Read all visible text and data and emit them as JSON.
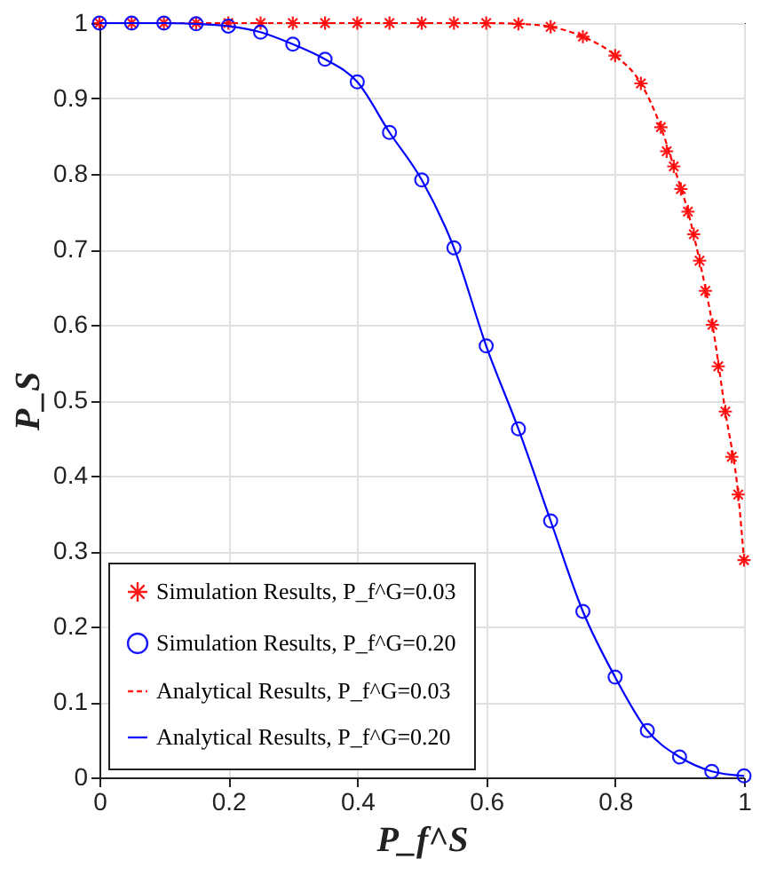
{
  "chart_data": {
    "type": "line",
    "xlabel": "P_f^S",
    "ylabel": "P_S",
    "xlim": [
      0,
      1
    ],
    "xticks": [
      0,
      0.2,
      0.4,
      0.6,
      0.8,
      1
    ],
    "ylim": [
      0,
      1
    ],
    "yticks": [
      0,
      0.1,
      0.2,
      0.3,
      0.4,
      0.5,
      0.6,
      0.7,
      0.8,
      0.9,
      1
    ],
    "grid": true,
    "legend": "bottom left",
    "series": [
      {
        "name": "Simulation Results, P_f^G=0.03",
        "type": "scatter",
        "marker": "cross",
        "color": "#ff0000",
        "x": [
          0,
          0.05,
          0.1,
          0.15,
          0.2,
          0.25,
          0.3,
          0.35,
          0.4,
          0.45,
          0.5,
          0.55,
          0.6,
          0.65,
          0.7,
          0.75,
          0.8,
          0.84,
          0.871,
          0.88,
          0.891,
          0.902,
          0.913,
          0.922,
          0.931,
          0.94,
          0.951,
          0.96,
          0.971,
          0.981,
          0.991,
          1.0
        ],
        "values": [
          1,
          1,
          1,
          1,
          1,
          1,
          1,
          1,
          1,
          1,
          1,
          1,
          1,
          0.999,
          0.995,
          0.982,
          0.957,
          0.92,
          0.862,
          0.83,
          0.81,
          0.78,
          0.75,
          0.72,
          0.685,
          0.645,
          0.6,
          0.545,
          0.485,
          0.425,
          0.375,
          0.288
        ]
      },
      {
        "name": "Simulation Results, P_f^G=0.20",
        "type": "scatter",
        "marker": "circle",
        "color": "#0000ff",
        "x": [
          0,
          0.05,
          0.1,
          0.15,
          0.2,
          0.25,
          0.3,
          0.35,
          0.4,
          0.45,
          0.5,
          0.55,
          0.6,
          0.65,
          0.7,
          0.75,
          0.8,
          0.85,
          0.9,
          0.95,
          1
        ],
        "values": [
          1,
          1,
          1,
          0.999,
          0.996,
          0.988,
          0.972,
          0.952,
          0.922,
          0.855,
          0.792,
          0.702,
          0.572,
          0.462,
          0.34,
          0.22,
          0.133,
          0.062,
          0.027,
          0.008,
          0.002
        ]
      },
      {
        "name": "Analytical Results, P_f^G=0.03",
        "type": "line",
        "line_style": "dashed",
        "color": "#ff0000",
        "x": [
          0,
          0.2,
          0.4,
          0.6,
          0.65,
          0.7,
          0.75,
          0.8,
          0.84,
          0.871,
          0.891,
          0.913,
          0.931,
          0.951,
          0.971,
          0.991,
          1.0
        ],
        "values": [
          1,
          1,
          1,
          1,
          0.999,
          0.995,
          0.982,
          0.957,
          0.92,
          0.862,
          0.81,
          0.75,
          0.685,
          0.6,
          0.485,
          0.375,
          0.288
        ]
      },
      {
        "name": "Analytical Results, P_f^G=0.20",
        "type": "line",
        "line_style": "solid",
        "color": "#0000ff",
        "x": [
          0,
          0.05,
          0.1,
          0.15,
          0.2,
          0.25,
          0.3,
          0.35,
          0.4,
          0.45,
          0.5,
          0.55,
          0.6,
          0.65,
          0.7,
          0.75,
          0.8,
          0.85,
          0.9,
          0.95,
          1
        ],
        "values": [
          1,
          1,
          1,
          0.999,
          0.996,
          0.988,
          0.972,
          0.952,
          0.922,
          0.855,
          0.792,
          0.702,
          0.572,
          0.462,
          0.34,
          0.22,
          0.133,
          0.062,
          0.027,
          0.008,
          0.002
        ]
      }
    ]
  }
}
